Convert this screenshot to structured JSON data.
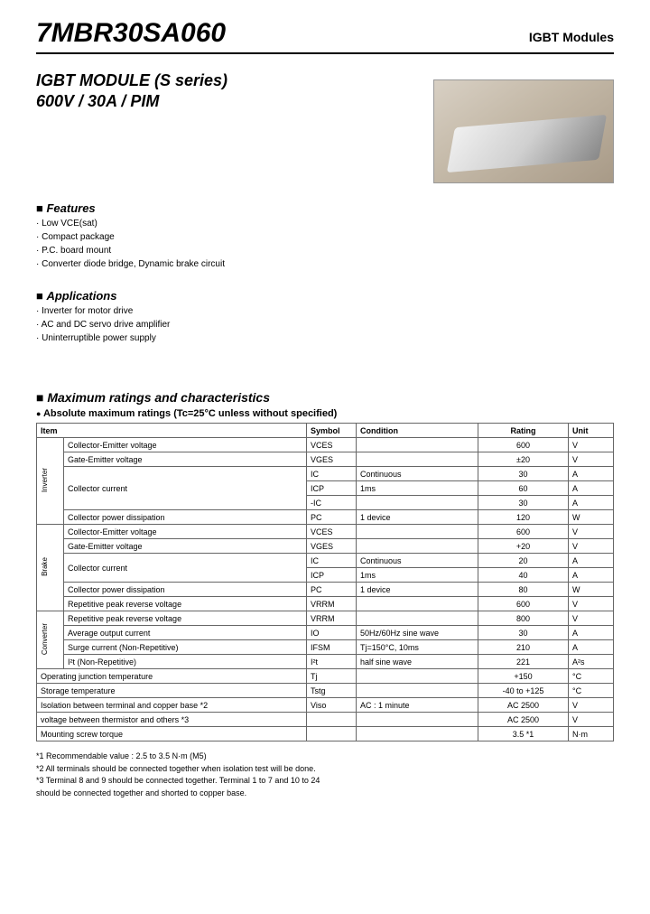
{
  "header": {
    "part_number": "7MBR30SA060",
    "category": "IGBT Modules"
  },
  "title": {
    "line1": "IGBT MODULE (S series)",
    "line2": "600V / 30A / PIM"
  },
  "features": {
    "heading": "Features",
    "items": [
      "Low VCE(sat)",
      "Compact package",
      "P.C. board mount",
      "Converter diode bridge, Dynamic brake circuit"
    ]
  },
  "applications": {
    "heading": "Applications",
    "items": [
      "Inverter for motor drive",
      "AC and DC servo drive amplifier",
      "Uninterruptible power supply"
    ]
  },
  "ratings": {
    "heading": "Maximum ratings and characteristics",
    "subheading": "Absolute maximum ratings (Tc=25°C unless without specified)",
    "columns": [
      "Item",
      "Symbol",
      "Condition",
      "Rating",
      "Unit"
    ],
    "groups": [
      {
        "label": "Inverter",
        "rows": [
          {
            "item": "Collector-Emitter voltage",
            "symbol": "VCES",
            "cond": "",
            "rating": "600",
            "unit": "V"
          },
          {
            "item": "Gate-Emitter voltage",
            "symbol": "VGES",
            "cond": "",
            "rating": "±20",
            "unit": "V"
          },
          {
            "item": "Collector current",
            "symbol": "IC",
            "cond": "Continuous",
            "rating": "30",
            "unit": "A",
            "rowspan": 3
          },
          {
            "item": "",
            "symbol": "ICP",
            "cond": "1ms",
            "rating": "60",
            "unit": "A"
          },
          {
            "item": "",
            "symbol": "-IC",
            "cond": "",
            "rating": "30",
            "unit": "A"
          },
          {
            "item": "Collector power dissipation",
            "symbol": "PC",
            "cond": "1 device",
            "rating": "120",
            "unit": "W"
          }
        ]
      },
      {
        "label": "Brake",
        "rows": [
          {
            "item": "Collector-Emitter voltage",
            "symbol": "VCES",
            "cond": "",
            "rating": "600",
            "unit": "V"
          },
          {
            "item": "Gate-Emitter voltage",
            "symbol": "VGES",
            "cond": "",
            "rating": "+20",
            "unit": "V"
          },
          {
            "item": "Collector current",
            "symbol": "IC",
            "cond": "Continuous",
            "rating": "20",
            "unit": "A",
            "rowspan": 2
          },
          {
            "item": "",
            "symbol": "ICP",
            "cond": "1ms",
            "rating": "40",
            "unit": "A"
          },
          {
            "item": "Collector power dissipation",
            "symbol": "PC",
            "cond": "1 device",
            "rating": "80",
            "unit": "W"
          },
          {
            "item": "Repetitive peak reverse voltage",
            "symbol": "VRRM",
            "cond": "",
            "rating": "600",
            "unit": "V"
          }
        ]
      },
      {
        "label": "Converter",
        "rows": [
          {
            "item": "Repetitive peak reverse voltage",
            "symbol": "VRRM",
            "cond": "",
            "rating": "800",
            "unit": "V"
          },
          {
            "item": "Average output current",
            "symbol": "IO",
            "cond": "50Hz/60Hz sine wave",
            "rating": "30",
            "unit": "A"
          },
          {
            "item": "Surge current (Non-Repetitive)",
            "symbol": "IFSM",
            "cond": "Tj=150°C, 10ms",
            "rating": "210",
            "unit": "A"
          },
          {
            "item": "I²t            (Non-Repetitive)",
            "symbol": "I²t",
            "cond": "half sine wave",
            "rating": "221",
            "unit": "A²s"
          }
        ]
      }
    ],
    "bottom_rows": [
      {
        "item": "Operating junction temperature",
        "symbol": "Tj",
        "cond": "",
        "rating": "+150",
        "unit": "°C"
      },
      {
        "item": "Storage temperature",
        "symbol": "Tstg",
        "cond": "",
        "rating": "-40 to +125",
        "unit": "°C"
      },
      {
        "item": "Isolation  between terminal and copper base *2",
        "symbol": "Viso",
        "cond": "AC : 1 minute",
        "rating": "AC 2500",
        "unit": "V"
      },
      {
        "item": "voltage    between thermistor and others *3",
        "symbol": "",
        "cond": "",
        "rating": "AC 2500",
        "unit": "V"
      },
      {
        "item": "Mounting screw torque",
        "symbol": "",
        "cond": "",
        "rating": "3.5  *1",
        "unit": "N·m"
      }
    ]
  },
  "footnotes": [
    "*1 Recommendable value : 2.5 to 3.5 N·m (M5)",
    "*2 All terminals should be connected together when isolation test will be done.",
    "*3 Terminal 8 and 9 should be connected together. Terminal 1 to 7 and 10 to 24",
    "    should be connected together and shorted to copper base."
  ]
}
